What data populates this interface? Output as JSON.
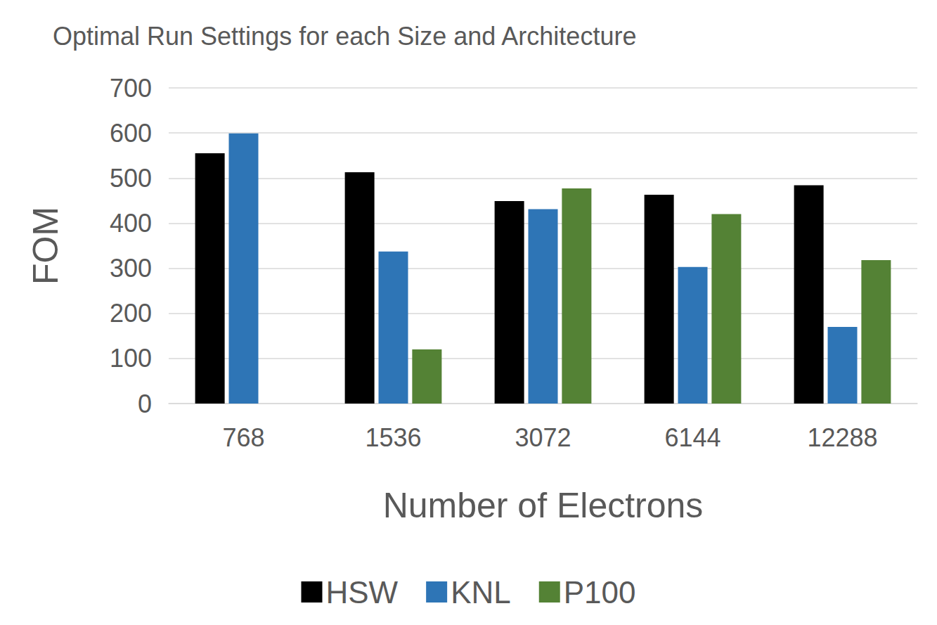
{
  "chart_data": {
    "type": "bar",
    "title": "Optimal Run Settings for each Size and Architecture",
    "x_label": "Number of Electrons",
    "y_label": "FOM",
    "categories": [
      "768",
      "1536",
      "3072",
      "6144",
      "12288"
    ],
    "series": [
      {
        "name": "HSW",
        "color": "#000000",
        "values": [
          555,
          513,
          449,
          463,
          484
        ]
      },
      {
        "name": "KNL",
        "color": "#2e75b6",
        "values": [
          599,
          337,
          431,
          303,
          170
        ]
      },
      {
        "name": "P100",
        "color": "#548235",
        "values": [
          null,
          120,
          477,
          420,
          318
        ]
      }
    ],
    "ylim": [
      0,
      700
    ],
    "yticks": [
      0,
      100,
      200,
      300,
      400,
      500,
      600,
      700
    ],
    "grid": true,
    "legend": "bottom"
  }
}
